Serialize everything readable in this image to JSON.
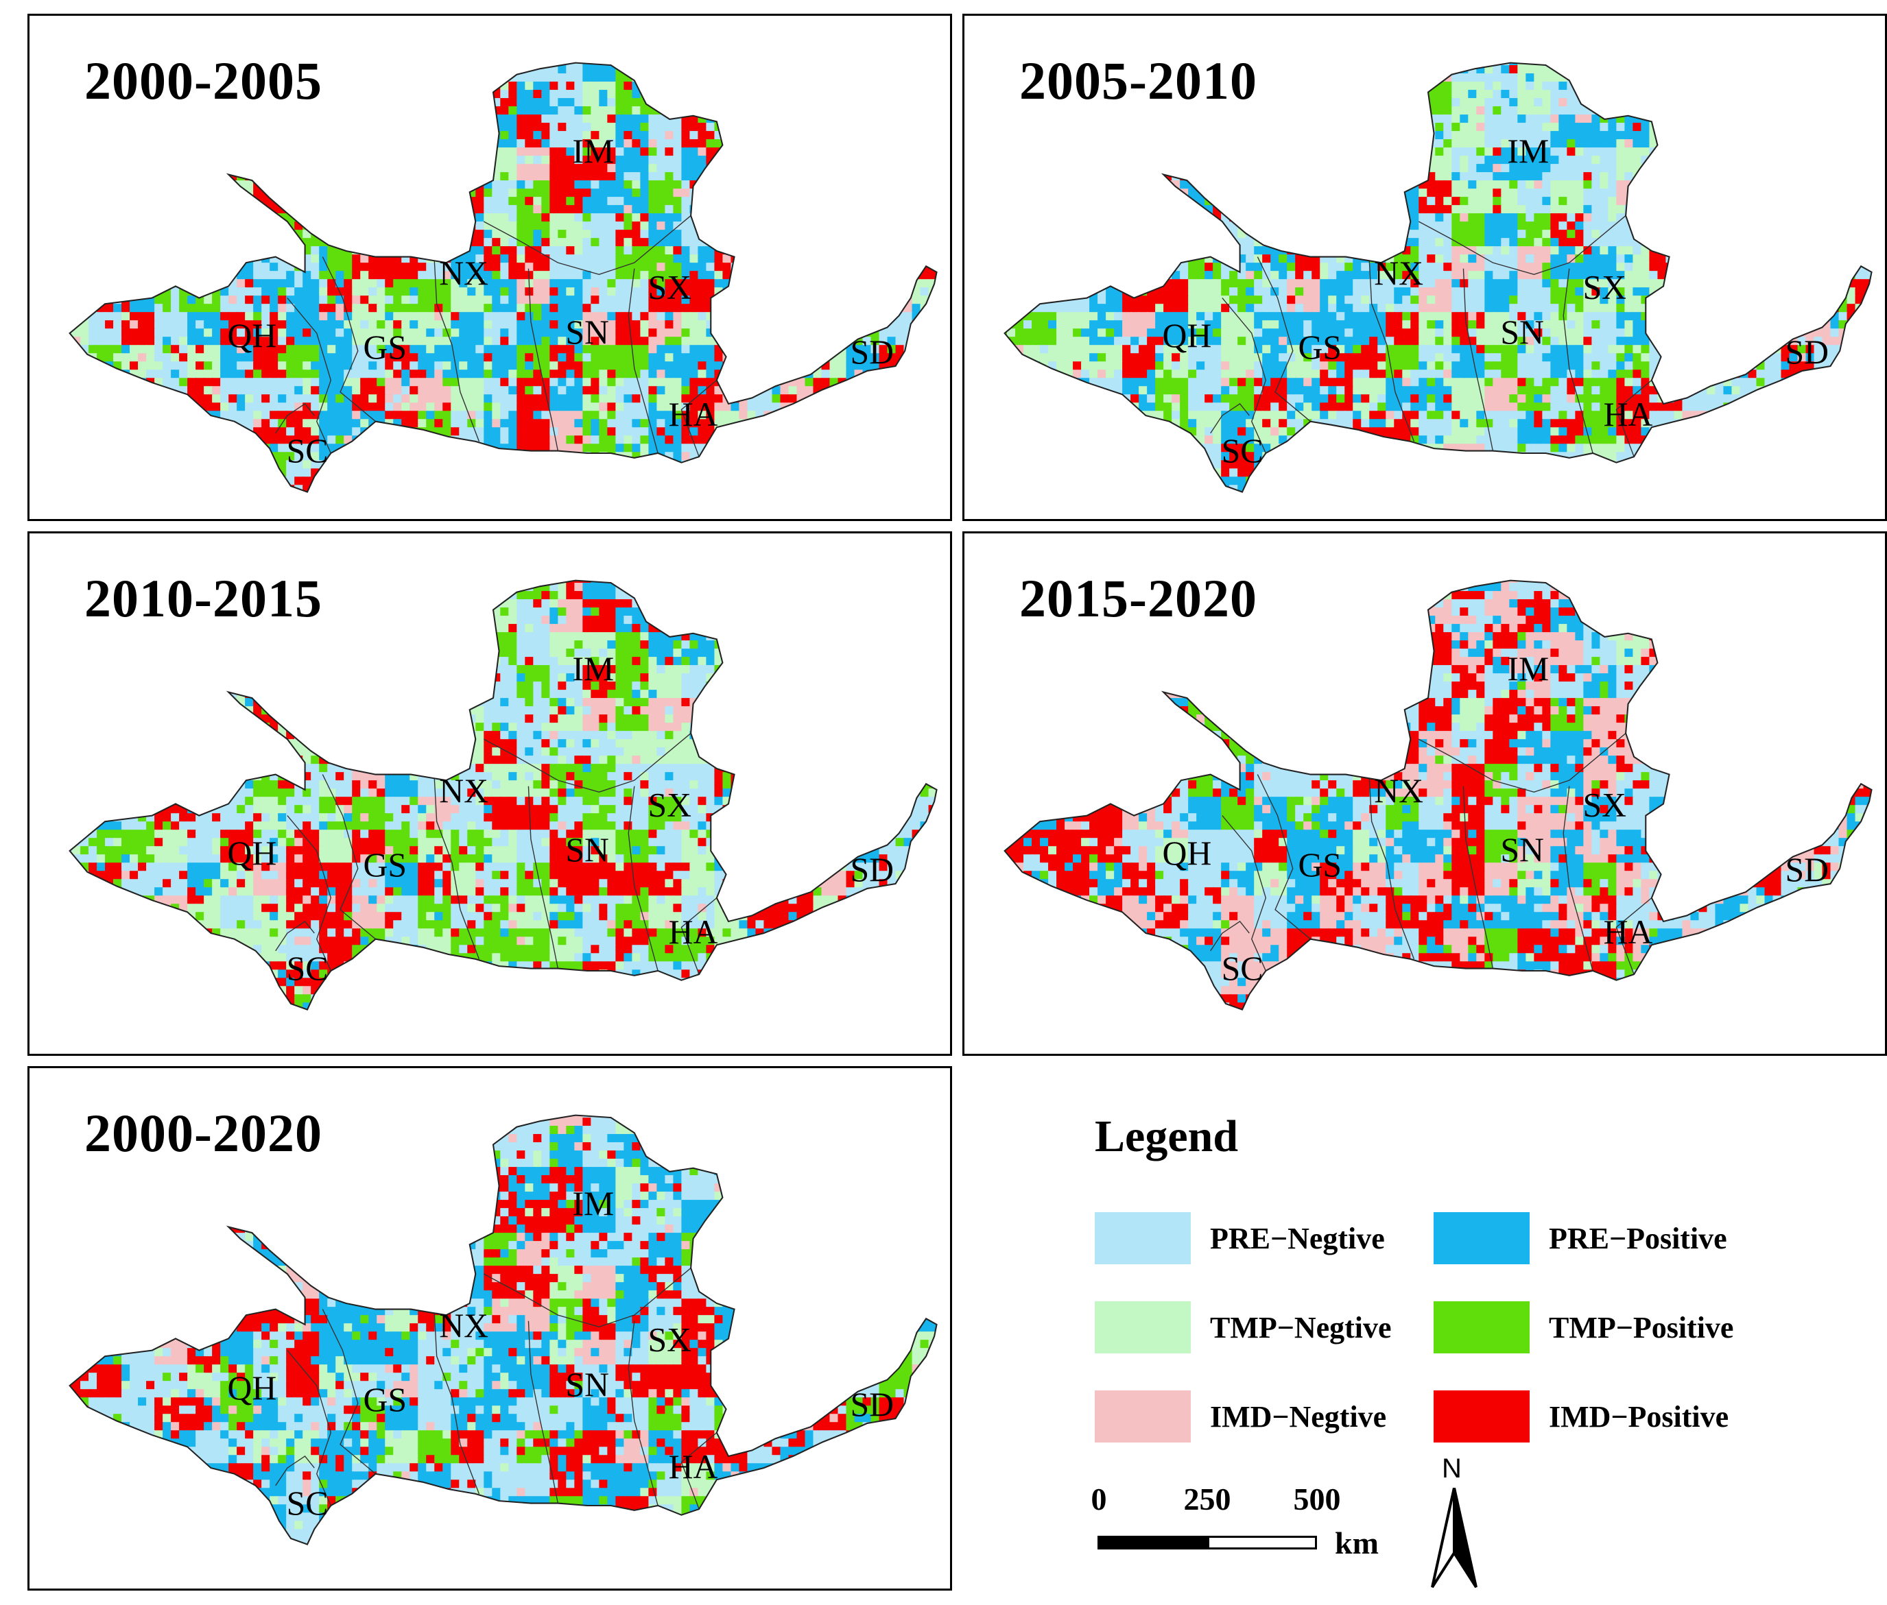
{
  "figure": {
    "panels": [
      {
        "id": "p1",
        "title": "2000-2005",
        "seed": 11,
        "weights": [
          0.22,
          0.2,
          0.18,
          0.14,
          0.08,
          0.18
        ]
      },
      {
        "id": "p2",
        "title": "2005-2010",
        "seed": 23,
        "weights": [
          0.28,
          0.22,
          0.2,
          0.13,
          0.06,
          0.11
        ]
      },
      {
        "id": "p3",
        "title": "2010-2015",
        "seed": 37,
        "weights": [
          0.26,
          0.1,
          0.2,
          0.15,
          0.07,
          0.22
        ]
      },
      {
        "id": "p4",
        "title": "2015-2020",
        "seed": 41,
        "weights": [
          0.23,
          0.22,
          0.08,
          0.08,
          0.17,
          0.22
        ]
      },
      {
        "id": "p5",
        "title": "2000-2020",
        "seed": 53,
        "weights": [
          0.25,
          0.24,
          0.1,
          0.1,
          0.07,
          0.24
        ]
      }
    ],
    "region_labels": [
      "QH",
      "GS",
      "SC",
      "NX",
      "IM",
      "SN",
      "SX",
      "HA",
      "SD"
    ]
  },
  "legend": {
    "title": "Legend",
    "items": [
      {
        "label": "PRE−Negtive",
        "color": "#b3e5f9"
      },
      {
        "label": "PRE−Positive",
        "color": "#18b4ee"
      },
      {
        "label": "TMP−Negtive",
        "color": "#c3f7c3"
      },
      {
        "label": "TMP−Positive",
        "color": "#5fde0b"
      },
      {
        "label": "IMD−Negtive",
        "color": "#f6c1c3"
      },
      {
        "label": "IMD−Positive",
        "color": "#f40000"
      }
    ]
  },
  "scale_bar": {
    "ticks": [
      "0",
      "250",
      "500"
    ],
    "unit": "km"
  },
  "north_arrow": {
    "label": "N"
  }
}
